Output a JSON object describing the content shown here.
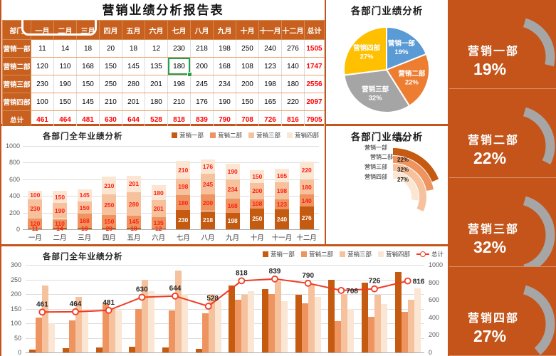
{
  "colors": {
    "background_orange": "#C4541A",
    "table_header_orange": "#C8611F",
    "series_palette": [
      "#C55A11",
      "#EE9460",
      "#F6C29D",
      "#FBE5D3"
    ],
    "pie_palette": [
      "#5B9BD5",
      "#ED7D31",
      "#A5A5A5",
      "#FFC000"
    ],
    "data_label_red": "#FF1F10",
    "total_red": "#FF0000",
    "line_red": "#F03B22",
    "gauge_gray": "#A6A6A6",
    "selection_green": "#21A04A",
    "grid_gray": "#DDDDDD",
    "axis_text_gray": "#595959"
  },
  "chart_data": [
    {
      "id": "report-table",
      "type": "table",
      "title": "营销业绩分析报告表",
      "columns": [
        "部门",
        "一月",
        "二月",
        "三月",
        "四月",
        "五月",
        "六月",
        "七月",
        "八月",
        "九月",
        "十月",
        "十一月",
        "十二月",
        "总计"
      ],
      "rows": [
        {
          "name": "营销一部",
          "values": [
            11,
            14,
            18,
            20,
            18,
            12,
            230,
            218,
            198,
            250,
            240,
            276
          ],
          "total": 1505
        },
        {
          "name": "营销二部",
          "values": [
            120,
            110,
            168,
            150,
            145,
            135,
            180,
            200,
            168,
            108,
            123,
            140
          ],
          "total": 1747
        },
        {
          "name": "营销三部",
          "values": [
            230,
            190,
            150,
            250,
            280,
            201,
            198,
            245,
            234,
            200,
            198,
            180
          ],
          "total": 2556
        },
        {
          "name": "营销四部",
          "values": [
            100,
            150,
            145,
            210,
            201,
            180,
            210,
            176,
            190,
            150,
            165,
            220
          ],
          "total": 2097
        }
      ],
      "total_row": {
        "name": "总计",
        "values": [
          461,
          464,
          481,
          630,
          644,
          528,
          818,
          839,
          790,
          708,
          726,
          816
        ],
        "total": 7905
      },
      "selected_cell": {
        "row": "营销二部",
        "column": "七月",
        "value": 180,
        "row_index": 1,
        "col_index": 6
      }
    },
    {
      "id": "dept-share-pie",
      "type": "pie",
      "title": "各部门业绩分析",
      "categories": [
        "营销一部",
        "营销二部",
        "营销三部",
        "营销四部"
      ],
      "values": [
        19,
        22,
        32,
        27
      ],
      "unit": "%",
      "start_angle_deg": 0,
      "direction": "clockwise",
      "label_style": "white-bold-inside"
    },
    {
      "id": "dept-share-radial",
      "type": "pie",
      "variant": "radial-progress-rings",
      "title": "各部门业绩分析",
      "categories": [
        "营销一部",
        "营销二部",
        "营销三部",
        "营销四部"
      ],
      "values": [
        19,
        22,
        32,
        27
      ],
      "unit": "%",
      "ring_order": "outer-to-inner"
    },
    {
      "id": "dept-year-stacked",
      "type": "bar",
      "variant": "stacked",
      "title": "各部门全年业绩分析",
      "categories": [
        "一月",
        "二月",
        "三月",
        "四月",
        "五月",
        "六月",
        "七月",
        "八月",
        "九月",
        "十月",
        "十一月",
        "十二月"
      ],
      "series": [
        {
          "name": "营销一部",
          "values": [
            11,
            14,
            18,
            20,
            18,
            12,
            230,
            218,
            198,
            250,
            240,
            276
          ]
        },
        {
          "name": "营销二部",
          "values": [
            120,
            110,
            168,
            150,
            145,
            135,
            180,
            200,
            168,
            108,
            123,
            140
          ]
        },
        {
          "name": "营销三部",
          "values": [
            230,
            190,
            150,
            250,
            280,
            201,
            198,
            245,
            234,
            200,
            198,
            180
          ]
        },
        {
          "name": "营销四部",
          "values": [
            100,
            150,
            145,
            210,
            201,
            180,
            210,
            176,
            190,
            150,
            165,
            220
          ]
        }
      ],
      "ylim": [
        0,
        1000
      ],
      "yticks": [
        0,
        200,
        400,
        600,
        800,
        1000
      ],
      "grid": true,
      "legend_position": "top-right",
      "data_labels": true
    },
    {
      "id": "dept-year-combo",
      "type": "bar",
      "variant": "clustered-with-line",
      "title": "各部门全年业绩分析",
      "categories": [
        "一月",
        "二月",
        "三月",
        "四月",
        "五月",
        "六月",
        "七月",
        "八月",
        "九月",
        "十月",
        "十一月",
        "十二月"
      ],
      "series": [
        {
          "name": "营销一部",
          "values": [
            11,
            14,
            18,
            20,
            18,
            12,
            230,
            218,
            198,
            250,
            240,
            276
          ]
        },
        {
          "name": "营销二部",
          "values": [
            120,
            110,
            168,
            150,
            145,
            135,
            180,
            200,
            168,
            108,
            123,
            140
          ]
        },
        {
          "name": "营销三部",
          "values": [
            230,
            190,
            150,
            250,
            280,
            201,
            198,
            245,
            234,
            200,
            198,
            180
          ]
        },
        {
          "name": "营销四部",
          "values": [
            100,
            150,
            145,
            210,
            201,
            180,
            210,
            176,
            190,
            150,
            165,
            220
          ]
        }
      ],
      "line_series": {
        "name": "总计",
        "values": [
          461,
          464,
          481,
          630,
          644,
          528,
          818,
          839,
          790,
          708,
          726,
          816
        ],
        "axis": "right"
      },
      "ylim_left": [
        0,
        300
      ],
      "yticks_left": [
        0,
        50,
        100,
        150,
        200,
        250,
        300
      ],
      "ylim_right": [
        0,
        1000
      ],
      "yticks_right": [
        0,
        200,
        400,
        600,
        800,
        1000
      ],
      "grid": true,
      "legend_position": "top-right",
      "x_labels_visible": false
    }
  ],
  "kpi_panels": [
    {
      "label": "营销一部",
      "value_pct": 19,
      "value_text": "19%"
    },
    {
      "label": "营销二部",
      "value_pct": 22,
      "value_text": "22%"
    },
    {
      "label": "营销三部",
      "value_pct": 32,
      "value_text": "32%"
    },
    {
      "label": "营销四部",
      "value_pct": 27,
      "value_text": "27%"
    }
  ]
}
